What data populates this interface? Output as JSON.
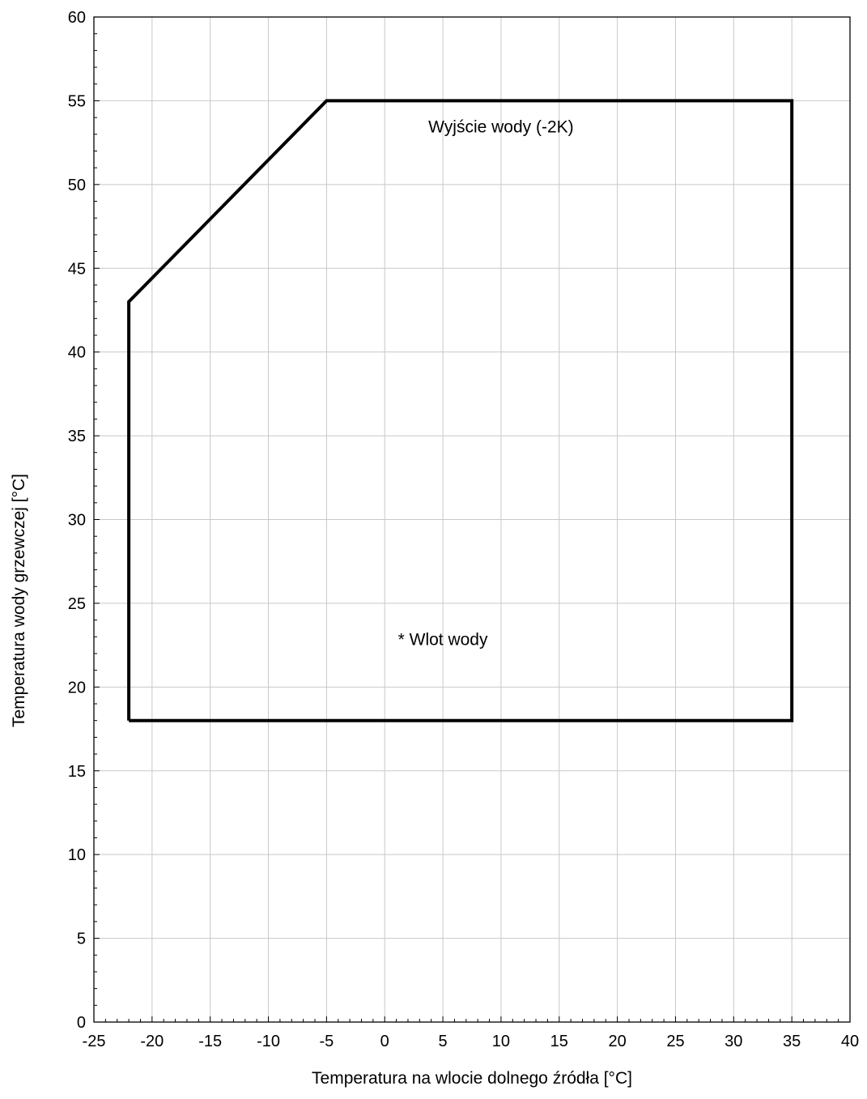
{
  "chart_data": {
    "type": "line",
    "title": "",
    "xlabel": "Temperatura na wlocie dolnego źródła [°C]",
    "ylabel": "Temperatura wody grzewczej [°C]",
    "xlim": [
      -25,
      40
    ],
    "ylim": [
      0,
      60
    ],
    "x_ticks": [
      -25,
      -20,
      -15,
      -10,
      -5,
      0,
      5,
      10,
      15,
      20,
      25,
      30,
      35,
      40
    ],
    "y_ticks": [
      0,
      5,
      10,
      15,
      20,
      25,
      30,
      35,
      40,
      45,
      50,
      55,
      60
    ],
    "x_tick_labels": [
      "-25",
      "-20",
      "-15",
      "-10",
      "-5",
      "0",
      "5",
      "10",
      "15",
      "20",
      "25",
      "30",
      "35",
      "40"
    ],
    "y_tick_labels": [
      "0",
      "5",
      "10",
      "15",
      "20",
      "25",
      "30",
      "35",
      "40",
      "45",
      "50",
      "55",
      "60"
    ],
    "grid": true,
    "series": [
      {
        "x": [
          -22,
          -22,
          -5,
          35,
          35,
          -22
        ],
        "y": [
          18,
          43,
          55,
          55,
          18,
          18
        ]
      }
    ],
    "annotations": [
      {
        "text": "Wyjście wody (-2K)",
        "x": 10,
        "y": 53.1
      },
      {
        "text": "* Wlot wody",
        "x": 5,
        "y": 22.5
      }
    ],
    "colors": {
      "envelope": "#000000",
      "grid": "#c8c8c8",
      "axis": "#000000"
    }
  }
}
